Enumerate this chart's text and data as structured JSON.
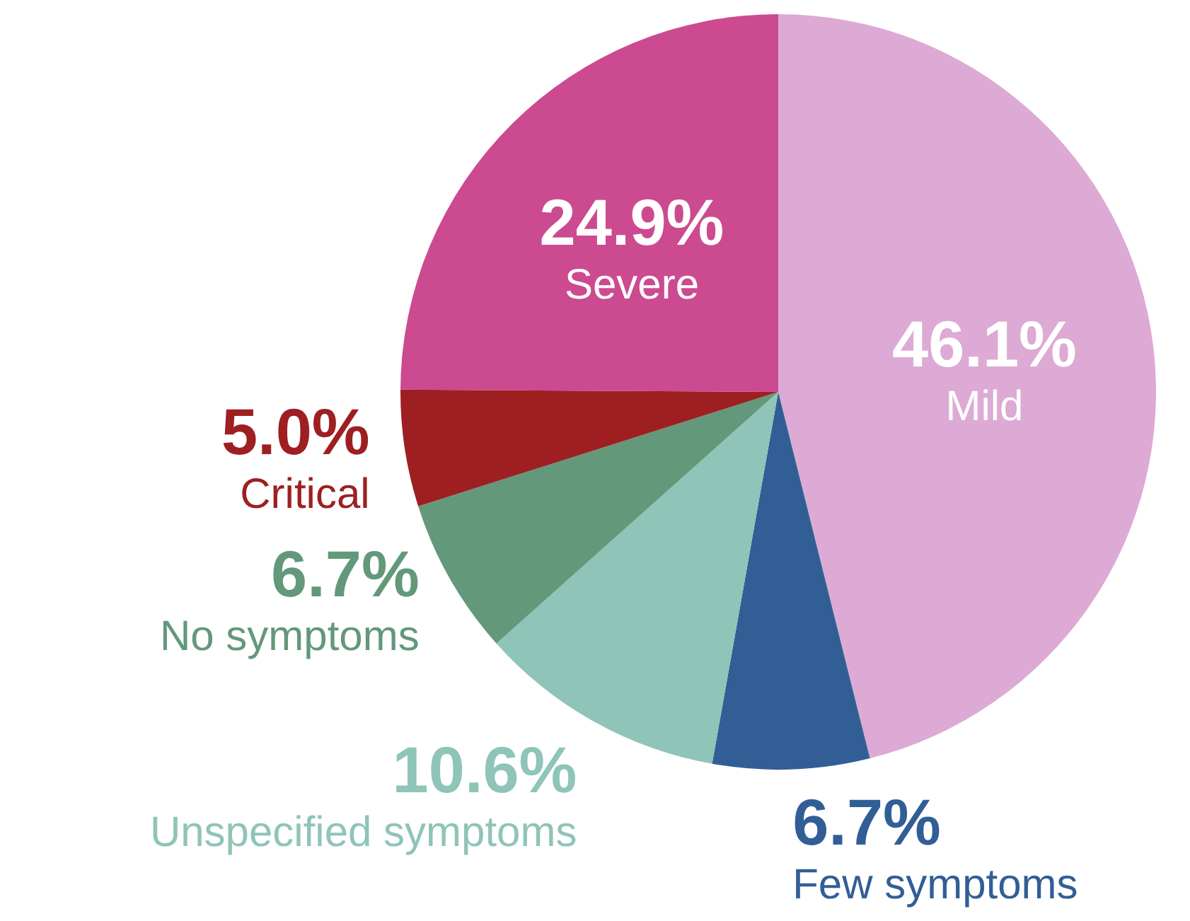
{
  "chart_data": {
    "type": "pie",
    "categories": [
      "Mild",
      "Few symptoms",
      "Unspecified symptoms",
      "No symptoms",
      "Critical",
      "Severe"
    ],
    "values": [
      46.1,
      6.7,
      10.6,
      6.7,
      5.0,
      24.9
    ],
    "value_labels": [
      "46.1%",
      "6.7%",
      "10.6%",
      "6.7%",
      "5.0%",
      "24.9%"
    ],
    "colors": [
      "#dcaad4",
      "#325e96",
      "#8fc4b8",
      "#63987a",
      "#9e1f22",
      "#cc4a90"
    ],
    "legend": false
  }
}
